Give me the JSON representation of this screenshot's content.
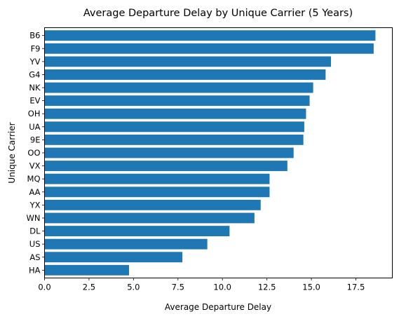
{
  "chart_data": {
    "type": "bar",
    "orientation": "horizontal",
    "title": "Average Departure Delay by Unique Carrier (5 Years)",
    "xlabel": "Average Departure Delay",
    "ylabel": "Unique Carrier",
    "xlim": [
      0,
      19.55
    ],
    "xticks": [
      0.0,
      2.5,
      5.0,
      7.5,
      10.0,
      12.5,
      15.0,
      17.5
    ],
    "xtick_labels": [
      "0.0",
      "2.5",
      "5.0",
      "7.5",
      "10.0",
      "12.5",
      "15.0",
      "17.5"
    ],
    "categories": [
      "B6",
      "F9",
      "YV",
      "G4",
      "NK",
      "EV",
      "OH",
      "UA",
      "9E",
      "OO",
      "VX",
      "MQ",
      "AA",
      "YX",
      "WN",
      "DL",
      "US",
      "AS",
      "HA"
    ],
    "values": [
      18.6,
      18.5,
      16.1,
      15.8,
      15.1,
      14.9,
      14.7,
      14.6,
      14.55,
      14.0,
      13.65,
      12.65,
      12.65,
      12.15,
      11.8,
      10.4,
      9.15,
      7.75,
      4.75
    ],
    "bar_color": "#1f77b4",
    "grid": false,
    "legend": "none"
  }
}
